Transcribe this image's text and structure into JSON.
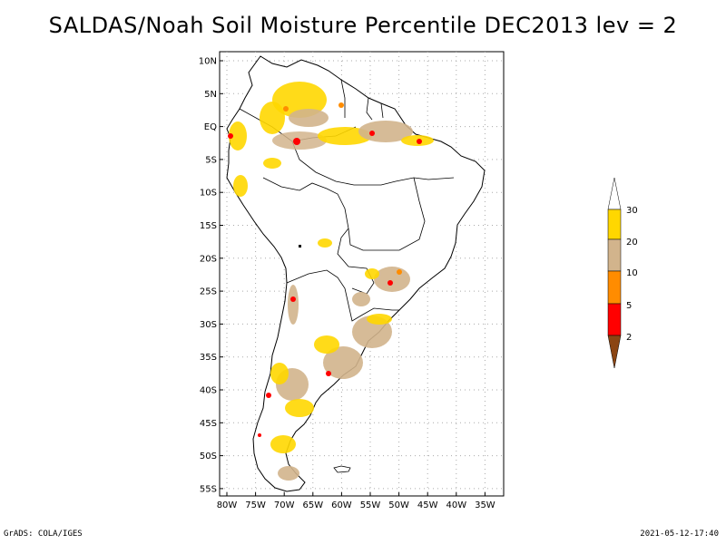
{
  "title": "SALDAS/Noah Soil Moisture Percentile DEC2013 lev = 2",
  "lat_ticks": [
    "10N",
    "5N",
    "EQ",
    "5S",
    "10S",
    "15S",
    "20S",
    "25S",
    "30S",
    "35S",
    "40S",
    "45S",
    "50S",
    "55S"
  ],
  "lon_ticks": [
    "80W",
    "75W",
    "70W",
    "65W",
    "60W",
    "55W",
    "50W",
    "45W",
    "40W",
    "35W"
  ],
  "legend": {
    "labels": [
      "30",
      "20",
      "10",
      "5",
      "2"
    ],
    "colors": {
      "above_30": "#ffffff",
      "band_20_30": "#ffd700",
      "band_10_20": "#d2b48c",
      "band_5_10": "#ff8c00",
      "band_2_5": "#ff0000",
      "below_2": "#8b4513"
    }
  },
  "footer": {
    "left": "GrADS: COLA/IGES",
    "right": "2021-05-12-17:40"
  }
}
